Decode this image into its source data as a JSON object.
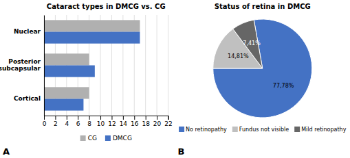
{
  "chart_data": [
    {
      "type": "bar",
      "orientation": "horizontal",
      "title": "Cataract types in DMCG vs. CG",
      "categories": [
        "Cortical",
        "Posterior\nsubcapsular",
        "Nuclear"
      ],
      "series": [
        {
          "name": "CG",
          "color": "#b0b0b0",
          "values": [
            8,
            8,
            17
          ]
        },
        {
          "name": "DMCG",
          "color": "#4472c4",
          "values": [
            7,
            9,
            17
          ]
        }
      ],
      "xlim": [
        0,
        22
      ],
      "xticks": [
        0,
        2,
        4,
        6,
        8,
        10,
        12,
        14,
        16,
        18,
        20,
        22
      ],
      "grid": true,
      "legend": "bottom",
      "annotations": [
        "A"
      ]
    },
    {
      "type": "pie",
      "title": "Status of retina in DMCG",
      "categories": [
        "No retinopathy",
        "Fundus not visible",
        "Mild retinopathy"
      ],
      "values": [
        77.78,
        14.81,
        7.41
      ],
      "value_labels": [
        "77,78%",
        "14,81%",
        "7,41%"
      ],
      "colors": [
        "#4472c4",
        "#c0c0c0",
        "#666666"
      ],
      "data_labels": true,
      "legend": "bottom",
      "annotations": [
        "B"
      ]
    }
  ]
}
